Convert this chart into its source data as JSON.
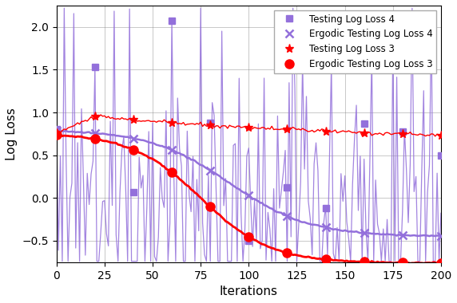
{
  "title": "",
  "xlabel": "Iterations",
  "ylabel": "Log Loss",
  "xlim": [
    0,
    200
  ],
  "ylim": [
    -0.75,
    2.25
  ],
  "figsize": [
    5.72,
    3.8
  ],
  "dpi": 100,
  "red_color": "#FF0000",
  "purple_color": "#9370DB",
  "legend_labels": [
    "Testing Log Loss 3",
    "Testing Log Loss 4",
    "Ergodic Testing Log Loss 3",
    "Ergodic Testing Log Loss 4"
  ],
  "xticks": [
    0,
    25,
    50,
    75,
    100,
    125,
    150,
    175,
    200
  ],
  "yticks": [
    -0.5,
    0.0,
    0.5,
    1.0,
    1.5,
    2.0
  ],
  "red_line3_start": 0.76,
  "red_line3_peak": 0.95,
  "red_line3_end": 0.62,
  "ergodic_red_start": 0.76,
  "ergodic_red_end": -0.72,
  "ergodic_purple_start": 0.8,
  "ergodic_purple_end": -0.42
}
